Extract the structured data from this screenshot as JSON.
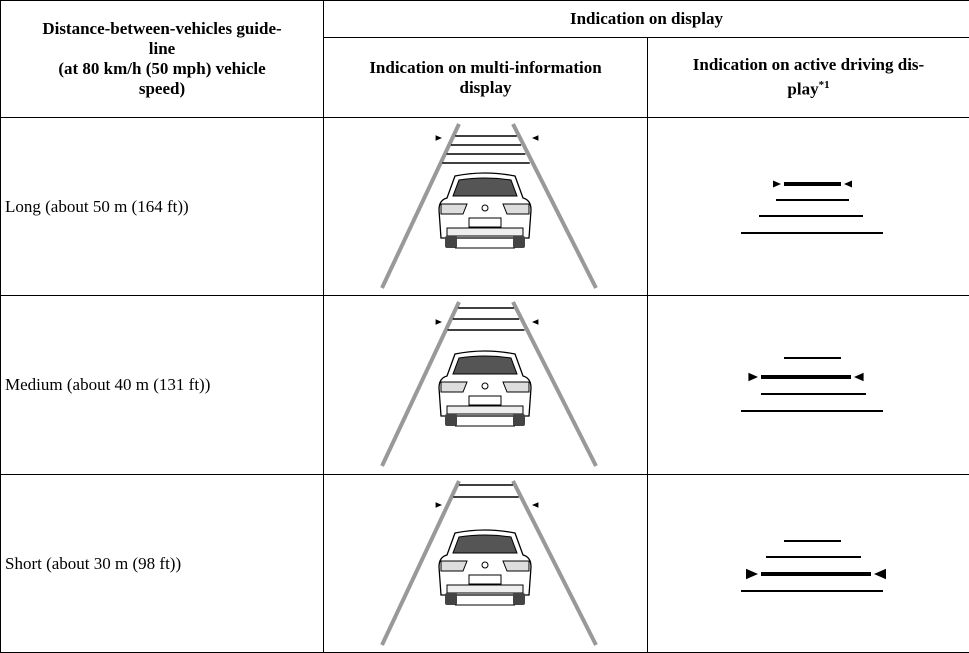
{
  "table": {
    "header": {
      "col1": [
        "Distance-between-vehicles guide-",
        "line",
        "(at 80 km/h (50 mph) vehicle",
        "speed)"
      ],
      "group": "Indication on display",
      "col2": [
        "Indication on multi-information",
        "display"
      ],
      "col3": [
        "Indication on active driving dis-",
        "play"
      ],
      "col3_note": "*1"
    },
    "rows": [
      "Long (about 50 m (164 ft))",
      "Medium (about 40 m (131 ft))",
      "Short (about 30 m (98 ft))"
    ]
  }
}
